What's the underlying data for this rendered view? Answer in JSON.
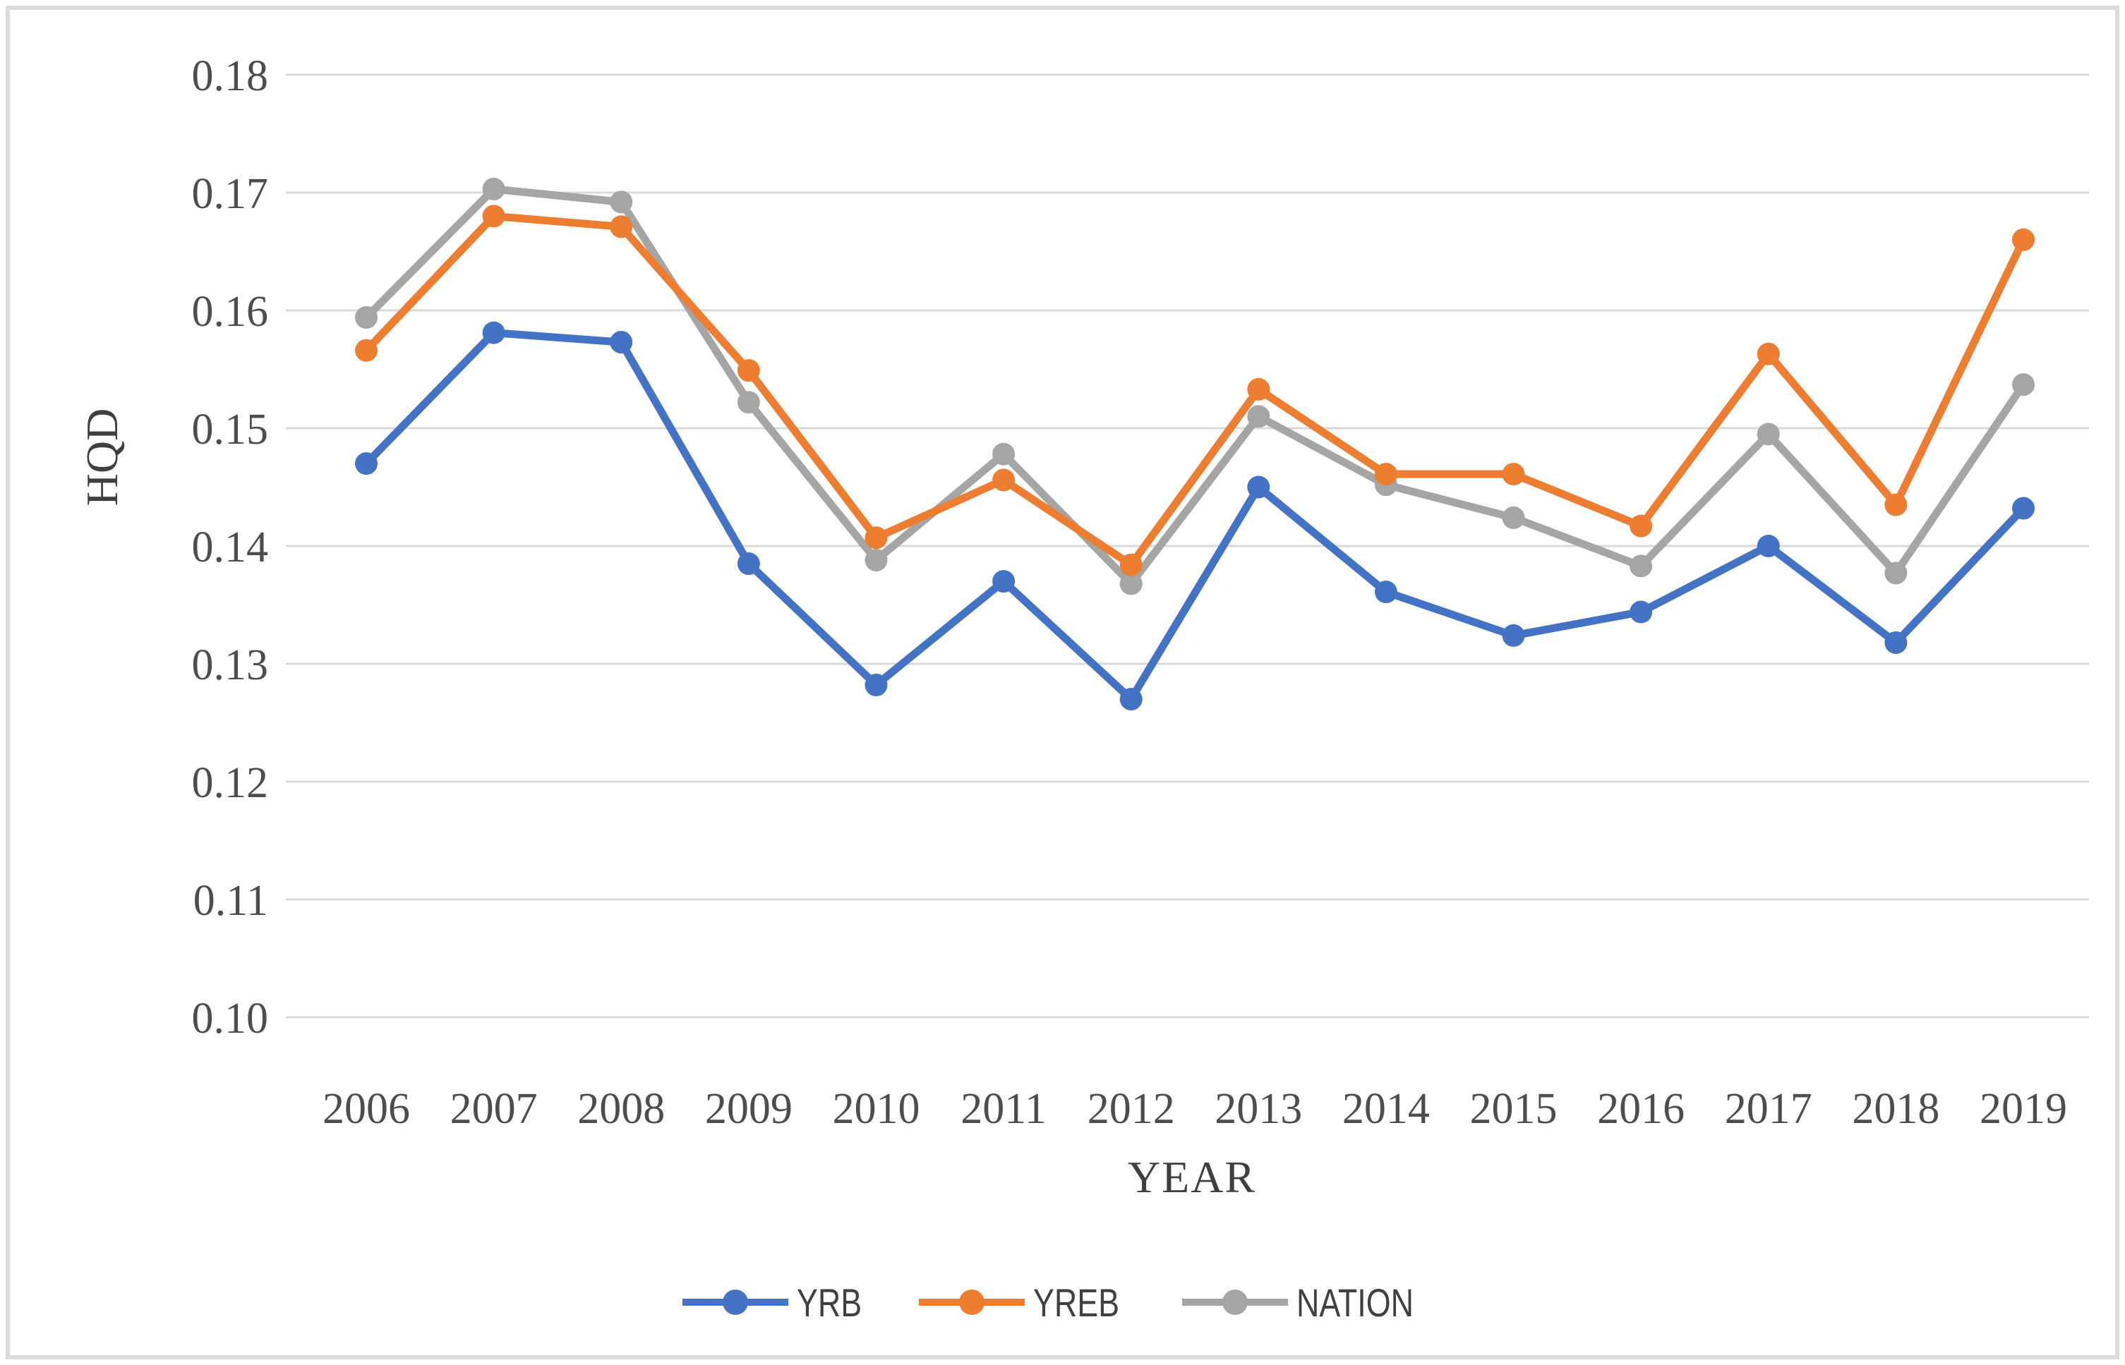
{
  "figure": {
    "border_color": "#DCDCDC",
    "background": "#FFFFFF"
  },
  "chart_data": {
    "type": "line",
    "title": "",
    "xlabel": "YEAR",
    "ylabel": "HQD",
    "categories": [
      "2006",
      "2007",
      "2008",
      "2009",
      "2010",
      "2011",
      "2012",
      "2013",
      "2014",
      "2015",
      "2016",
      "2017",
      "2018",
      "2019"
    ],
    "ylim": [
      0.1,
      0.18
    ],
    "ytick_step": 0.01,
    "yticks": [
      "0.18",
      "0.17",
      "0.16",
      "0.15",
      "0.14",
      "0.13",
      "0.12",
      "0.11",
      "0.10"
    ],
    "grid": "horizontal",
    "grid_color": "#D9D9D9",
    "legend_position": "bottom",
    "marker": "circle",
    "series": [
      {
        "name": "YRB",
        "color": "#4472C4",
        "values": [
          0.147,
          0.1581,
          0.1573,
          0.1385,
          0.1282,
          0.137,
          0.127,
          0.145,
          0.1361,
          0.1324,
          0.1344,
          0.14,
          0.1318,
          0.1432
        ]
      },
      {
        "name": "YREB",
        "color": "#ED7D31",
        "values": [
          0.1566,
          0.168,
          0.1671,
          0.1549,
          0.1407,
          0.1456,
          0.1384,
          0.1533,
          0.1461,
          0.1461,
          0.1417,
          0.1563,
          0.1435,
          0.166
        ]
      },
      {
        "name": "NATION",
        "color": "#A5A5A5",
        "values": [
          0.1594,
          0.1703,
          0.1692,
          0.1522,
          0.1388,
          0.1478,
          0.1368,
          0.151,
          0.1452,
          0.1424,
          0.1383,
          0.1495,
          0.1377,
          0.1537
        ]
      }
    ]
  }
}
